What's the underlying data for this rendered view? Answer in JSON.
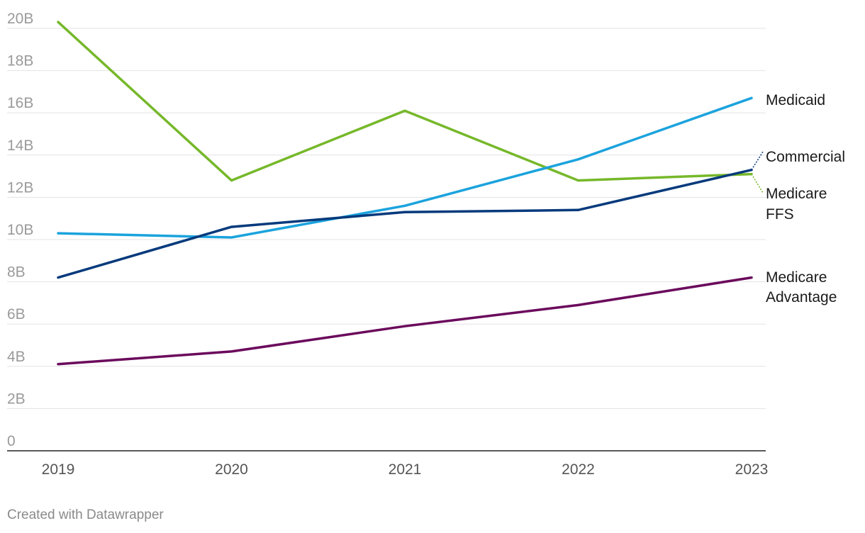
{
  "chart_data": {
    "type": "line",
    "x": [
      "2019",
      "2020",
      "2021",
      "2022",
      "2023"
    ],
    "ylim": [
      0,
      20
    ],
    "y_ticks": [
      0,
      2,
      4,
      6,
      8,
      10,
      12,
      14,
      16,
      18,
      20
    ],
    "y_tick_labels": [
      "0",
      "2B",
      "4B",
      "6B",
      "8B",
      "10B",
      "12B",
      "14B",
      "16B",
      "18B",
      "20B"
    ],
    "grid": true,
    "legend": "direct labels at right end of lines",
    "series": [
      {
        "name": "Medicaid",
        "color": "#1ba3dd",
        "values": [
          10.3,
          10.1,
          11.6,
          13.8,
          16.7
        ]
      },
      {
        "name": "Commercial",
        "color": "#063a7c",
        "values": [
          8.2,
          10.6,
          11.3,
          11.4,
          13.3
        ]
      },
      {
        "name": "Medicare FFS",
        "color": "#76b82a",
        "values": [
          20.3,
          12.8,
          16.1,
          12.8,
          13.1
        ]
      },
      {
        "name": "Medicare Advantage",
        "color": "#6b0a5c",
        "values": [
          4.1,
          4.7,
          5.9,
          6.9,
          8.2
        ]
      }
    ],
    "labels": [
      {
        "series": "Medicaid",
        "lines": [
          "Medicaid"
        ]
      },
      {
        "series": "Commercial",
        "lines": [
          "Commercial"
        ]
      },
      {
        "series": "Medicare FFS",
        "lines": [
          "Medicare",
          "FFS"
        ]
      },
      {
        "series": "Medicare Advantage",
        "lines": [
          "Medicare",
          "Advantage"
        ]
      }
    ]
  },
  "footer": {
    "credit": "Created with Datawrapper"
  }
}
